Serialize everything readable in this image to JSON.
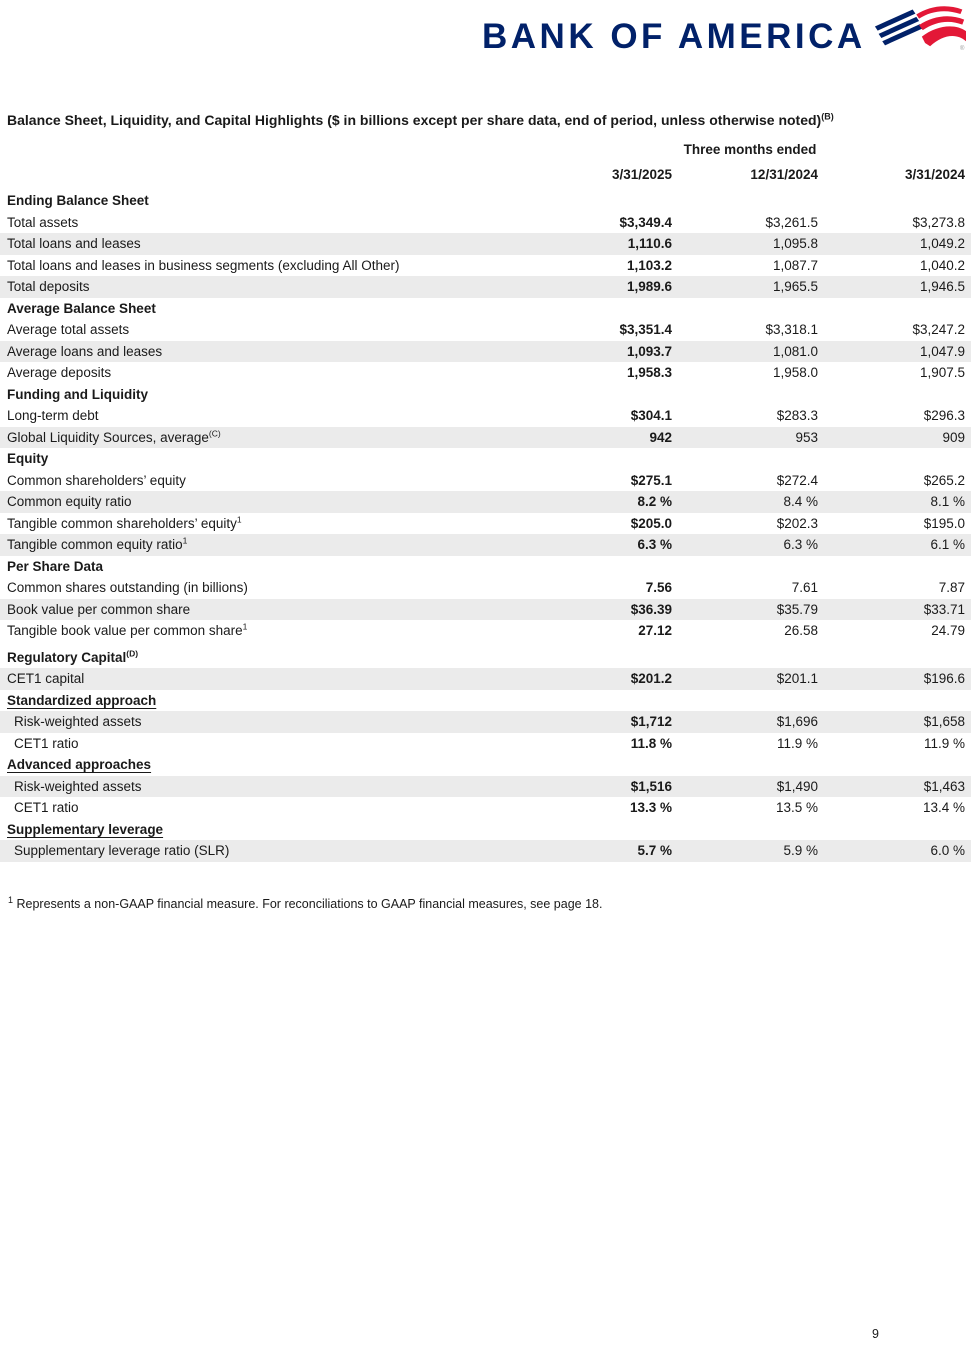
{
  "brand": {
    "logo_text": "BANK OF AMERICA",
    "registered_mark": "®",
    "navy": "#012169",
    "red": "#E31837"
  },
  "title": {
    "text": "Balance Sheet, Liquidity, and Capital Highlights ($ in billions except per share data, end of period, unless otherwise noted)",
    "sup": "(B)"
  },
  "table": {
    "group_header": "Three months ended",
    "columns": [
      "3/31/2025",
      "12/31/2024",
      "3/31/2024"
    ],
    "shaded_color": "#ebebeb",
    "rows": [
      {
        "type": "section",
        "label": "Ending Balance Sheet"
      },
      {
        "type": "data",
        "label": "Total assets",
        "values": [
          "$3,349.4",
          "$3,261.5",
          "$3,273.8"
        ]
      },
      {
        "type": "data",
        "label": "Total loans and leases",
        "shaded": true,
        "values": [
          "1,110.6",
          "1,095.8",
          "1,049.2"
        ]
      },
      {
        "type": "data",
        "label": "Total loans and leases in business segments (excluding All Other)",
        "values": [
          "1,103.2",
          "1,087.7",
          "1,040.2"
        ]
      },
      {
        "type": "data",
        "label": "Total deposits",
        "shaded": true,
        "values": [
          "1,989.6",
          "1,965.5",
          "1,946.5"
        ]
      },
      {
        "type": "section",
        "label": "Average Balance Sheet"
      },
      {
        "type": "data",
        "label": "Average total assets",
        "values": [
          "$3,351.4",
          "$3,318.1",
          "$3,247.2"
        ]
      },
      {
        "type": "data",
        "label": "Average loans and leases",
        "shaded": true,
        "values": [
          "1,093.7",
          "1,081.0",
          "1,047.9"
        ]
      },
      {
        "type": "data",
        "label": "Average deposits",
        "values": [
          "1,958.3",
          "1,958.0",
          "1,907.5"
        ]
      },
      {
        "type": "section",
        "label": "Funding and Liquidity"
      },
      {
        "type": "data",
        "label": "Long-term debt",
        "values": [
          "$304.1",
          "$283.3",
          "$296.3"
        ]
      },
      {
        "type": "data",
        "label": "Global Liquidity Sources, average",
        "sup": "(C)",
        "shaded": true,
        "values": [
          "942",
          "953",
          "909"
        ]
      },
      {
        "type": "section",
        "label": "Equity"
      },
      {
        "type": "data",
        "label": "Common shareholders’ equity",
        "values": [
          "$275.1",
          "$272.4",
          "$265.2"
        ]
      },
      {
        "type": "data",
        "label": "Common equity ratio",
        "shaded": true,
        "values": [
          "8.2 %",
          "8.4 %",
          "8.1 %"
        ]
      },
      {
        "type": "data",
        "label": "Tangible common shareholders’ equity",
        "sup": "1",
        "values": [
          "$205.0",
          "$202.3",
          "$195.0"
        ]
      },
      {
        "type": "data",
        "label": "Tangible common equity ratio",
        "sup": "1",
        "shaded": true,
        "values": [
          "6.3 %",
          "6.3 %",
          "6.1 %"
        ]
      },
      {
        "type": "section",
        "label": "Per Share Data"
      },
      {
        "type": "data",
        "label": "Common shares outstanding (in billions)",
        "values": [
          "7.56",
          "7.61",
          "7.87"
        ]
      },
      {
        "type": "data",
        "label": "Book value per common share",
        "shaded": true,
        "values": [
          "$36.39",
          "$35.79",
          "$33.71"
        ]
      },
      {
        "type": "data",
        "label": "Tangible book value per common share",
        "sup": "1",
        "values": [
          "27.12",
          "26.58",
          "24.79"
        ]
      },
      {
        "type": "section",
        "label": "Regulatory Capital",
        "sup": "(D)",
        "space_before": true
      },
      {
        "type": "data",
        "label": "CET1 capital",
        "shaded": true,
        "values": [
          "$201.2",
          "$201.1",
          "$196.6"
        ]
      },
      {
        "type": "subsection",
        "label": "Standardized approach"
      },
      {
        "type": "data",
        "label": "Risk-weighted assets",
        "indent": true,
        "shaded": true,
        "values": [
          "$1,712",
          "$1,696",
          "$1,658"
        ]
      },
      {
        "type": "data",
        "label": "CET1 ratio",
        "indent": true,
        "values": [
          "11.8 %",
          "11.9 %",
          "11.9 %"
        ]
      },
      {
        "type": "subsection",
        "label": "Advanced approaches"
      },
      {
        "type": "data",
        "label": "Risk-weighted assets",
        "indent": true,
        "shaded": true,
        "values": [
          "$1,516",
          "$1,490",
          "$1,463"
        ]
      },
      {
        "type": "data",
        "label": "CET1 ratio",
        "indent": true,
        "values": [
          "13.3 %",
          "13.5 %",
          "13.4 %"
        ]
      },
      {
        "type": "subsection",
        "label": "Supplementary leverage"
      },
      {
        "type": "data",
        "label": "Supplementary leverage ratio (SLR)",
        "indent": true,
        "shaded": true,
        "values": [
          "5.7 %",
          "5.9 %",
          "6.0 %"
        ]
      }
    ]
  },
  "footnote": {
    "sup": "1",
    "text": " Represents a non-GAAP financial measure. For reconciliations to GAAP financial measures, see page 18."
  },
  "page_number": "9"
}
